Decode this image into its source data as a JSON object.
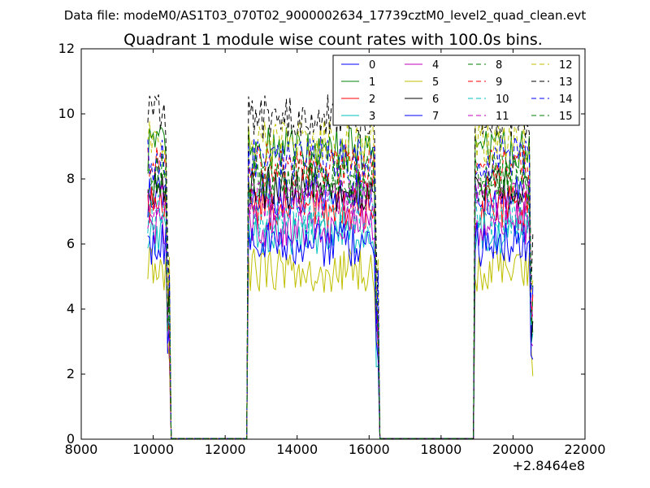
{
  "figure": {
    "suptitle": "Data file: modeM0/AS1T03_070T02_9000002634_17739cztM0_level2_quad_clean.evt",
    "title": "Quadrant 1 module wise count rates with 100.0s bins.",
    "x_offset_label": "+2.8464e8"
  },
  "chart_data": {
    "type": "line",
    "title": "Quadrant 1 module wise count rates with 100.0s bins.",
    "xlabel": "",
    "ylabel": "",
    "xlim": [
      8000,
      22000
    ],
    "ylim": [
      0,
      12
    ],
    "x_offset": 284640000,
    "x_ticks": [
      8000,
      10000,
      12000,
      14000,
      16000,
      18000,
      20000,
      22000
    ],
    "y_ticks": [
      0,
      2,
      4,
      6,
      8,
      10,
      12
    ],
    "x_tick_labels": [
      "8000",
      "10000",
      "12000",
      "14000",
      "16000",
      "18000",
      "20000",
      "22000"
    ],
    "y_tick_labels": [
      "0",
      "2",
      "4",
      "6",
      "8",
      "10",
      "12"
    ],
    "grid": false,
    "legend_position": "top-right",
    "segments": [
      {
        "start": 9850,
        "end": 10450
      },
      {
        "start": 12650,
        "end": 16250
      },
      {
        "start": 18950,
        "end": 20550
      }
    ],
    "series": [
      {
        "name": "0",
        "color": "#0000ff",
        "style": "solid",
        "level": 7.5
      },
      {
        "name": "1",
        "color": "#008000",
        "style": "solid",
        "level": 8.9
      },
      {
        "name": "2",
        "color": "#ff0000",
        "style": "solid",
        "level": 7.1
      },
      {
        "name": "3",
        "color": "#00bfbf",
        "style": "solid",
        "level": 6.3
      },
      {
        "name": "4",
        "color": "#bf00bf",
        "style": "solid",
        "level": 6.6
      },
      {
        "name": "5",
        "color": "#bfbf00",
        "style": "solid",
        "level": 5.2
      },
      {
        "name": "6",
        "color": "#000000",
        "style": "solid",
        "level": 7.7
      },
      {
        "name": "7",
        "color": "#0000ff",
        "style": "solid",
        "level": 6.0
      },
      {
        "name": "8",
        "color": "#008000",
        "style": "dashed",
        "level": 7.9
      },
      {
        "name": "9",
        "color": "#ff0000",
        "style": "dashed",
        "level": 8.4
      },
      {
        "name": "10",
        "color": "#00bfbf",
        "style": "dashed",
        "level": 6.9
      },
      {
        "name": "11",
        "color": "#bf00bf",
        "style": "dashed",
        "level": 7.4
      },
      {
        "name": "12",
        "color": "#bfbf00",
        "style": "dashed",
        "level": 9.1
      },
      {
        "name": "13",
        "color": "#000000",
        "style": "dashed",
        "level": 9.9
      },
      {
        "name": "14",
        "color": "#0000ff",
        "style": "dashed",
        "level": 8.6
      },
      {
        "name": "15",
        "color": "#008000",
        "style": "dashed",
        "level": 8.1
      }
    ]
  }
}
